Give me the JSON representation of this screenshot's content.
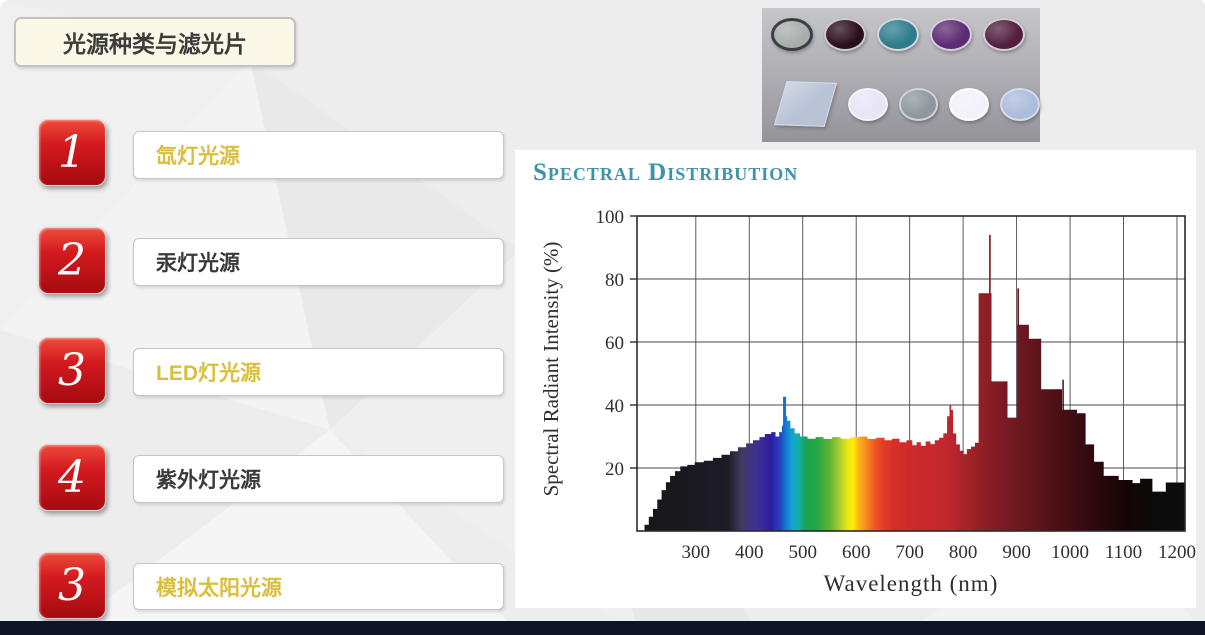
{
  "theme": {
    "accent_red": "#c8121a",
    "gold": "#d9bf3c",
    "dark_text": "#3a3a3a",
    "teal": "#3d93a8",
    "navy": "#0e1526",
    "cream": "#fcf8e7"
  },
  "slide": {
    "title": "光源种类与滤光片"
  },
  "list": {
    "items": [
      {
        "number": "1",
        "label": "氙灯光源",
        "color": "gold"
      },
      {
        "number": "2",
        "label": "汞灯光源",
        "color": "dark"
      },
      {
        "number": "3",
        "label": "LED灯光源",
        "color": "gold"
      },
      {
        "number": "4",
        "label": "紫外灯光源",
        "color": "dark"
      },
      {
        "number": "3",
        "label": "模拟太阳光源",
        "color": "gold"
      }
    ]
  },
  "filters": {
    "rows": [
      [
        {
          "shape": "ellipse",
          "fill": "#a8aeac",
          "ring": "#3c4043",
          "rw": 3,
          "name": "gray-nd-filter"
        },
        {
          "shape": "ellipse",
          "fill": "#2a0d1d",
          "ring": "#cfc8d4",
          "name": "dark-maroon-filter"
        },
        {
          "shape": "ellipse",
          "fill": "#2e7b8d",
          "ring": "#d3d9dd",
          "name": "teal-filter"
        },
        {
          "shape": "ellipse",
          "fill": "#5c2a73",
          "ring": "#d6cfdc",
          "name": "purple-filter"
        },
        {
          "shape": "ellipse",
          "fill": "#521e3e",
          "ring": "#d6ccd4",
          "name": "plum-filter"
        }
      ],
      [
        {
          "shape": "square",
          "fill": "#b9c3d6",
          "ring": "#d8dee8",
          "name": "square-glass-filter"
        },
        {
          "shape": "ellipse",
          "fill": "#e7e5f6",
          "ring": "#f4f2fc",
          "name": "lavender-filter"
        },
        {
          "shape": "ellipse",
          "fill": "#8d979d",
          "ring": "#ced4d8",
          "name": "gray-filter"
        },
        {
          "shape": "ellipse",
          "fill": "#f3f1fa",
          "ring": "#ffffff",
          "name": "white-filter"
        },
        {
          "shape": "ellipse",
          "fill": "#adbcdc",
          "ring": "#d4dcec",
          "name": "light-blue-filter"
        }
      ]
    ]
  },
  "chart_data": {
    "type": "area",
    "title": "Spectral Distribution",
    "xlabel": "Wavelength (nm)",
    "ylabel": "Spectral Radiant Intensity (%)",
    "x_range": [
      190,
      1215
    ],
    "y_range": [
      0,
      100
    ],
    "x_ticks": [
      300,
      400,
      500,
      600,
      700,
      800,
      900,
      1000,
      1100,
      1200
    ],
    "y_ticks": [
      20,
      40,
      60,
      80,
      100
    ],
    "grid": true,
    "legend": "none",
    "steps": [
      [
        190,
        0
      ],
      [
        204,
        2
      ],
      [
        212,
        4.5
      ],
      [
        220,
        7
      ],
      [
        228,
        10
      ],
      [
        236,
        13
      ],
      [
        244,
        15.5
      ],
      [
        252,
        17.5
      ],
      [
        261,
        19
      ],
      [
        271,
        20.5
      ],
      [
        284,
        21
      ],
      [
        298,
        21.8
      ],
      [
        315,
        22.3
      ],
      [
        332,
        23.2
      ],
      [
        348,
        24.2
      ],
      [
        364,
        25.3
      ],
      [
        379,
        26.6
      ],
      [
        394,
        27.8
      ],
      [
        407,
        28.8
      ],
      [
        419,
        29.8
      ],
      [
        429,
        30.8
      ],
      [
        441,
        31.4
      ],
      [
        449,
        30
      ],
      [
        456,
        31.4
      ],
      [
        461,
        33.4
      ],
      [
        465,
        36.4
      ],
      [
        471,
        35
      ],
      [
        477,
        32.6
      ],
      [
        485,
        31
      ],
      [
        495,
        30
      ],
      [
        509,
        29.3
      ],
      [
        524,
        29.8
      ],
      [
        539,
        29.2
      ],
      [
        555,
        29.8
      ],
      [
        571,
        29.3
      ],
      [
        589,
        29.8
      ],
      [
        606,
        30
      ],
      [
        621,
        29.2
      ],
      [
        637,
        29.6
      ],
      [
        653,
        28.8
      ],
      [
        667,
        29.3
      ],
      [
        681,
        28.2
      ],
      [
        694,
        28.8
      ],
      [
        705,
        27.2
      ],
      [
        713,
        28.2
      ],
      [
        721,
        27
      ],
      [
        730,
        28.4
      ],
      [
        739,
        27.6
      ],
      [
        747,
        28.8
      ],
      [
        755,
        29.6
      ],
      [
        763,
        31
      ],
      [
        770,
        36.4
      ],
      [
        776,
        38.4
      ],
      [
        781,
        31
      ],
      [
        787,
        27.5
      ],
      [
        794,
        25.5
      ],
      [
        801,
        24.4
      ],
      [
        807,
        26
      ],
      [
        815,
        26.8
      ],
      [
        822,
        28
      ],
      [
        829,
        75.5
      ],
      [
        853,
        47.5
      ],
      [
        883,
        36
      ],
      [
        901,
        65.5
      ],
      [
        923,
        61
      ],
      [
        946,
        45
      ],
      [
        985,
        38.5
      ],
      [
        1013,
        37.4
      ],
      [
        1029,
        27.5
      ],
      [
        1045,
        22
      ],
      [
        1063,
        17.5
      ],
      [
        1091,
        16.2
      ],
      [
        1117,
        15.2
      ],
      [
        1131,
        16.6
      ],
      [
        1154,
        12.5
      ],
      [
        1179,
        15.4
      ],
      [
        1215,
        15.8
      ]
    ],
    "spikes": [
      [
        466,
        42.6,
        3
      ],
      [
        776,
        40,
        1.6
      ],
      [
        850,
        94,
        1.7
      ],
      [
        903,
        77,
        1.7
      ],
      [
        987,
        48,
        1.5
      ]
    ],
    "gradient_stops": [
      [
        190,
        "#161616"
      ],
      [
        360,
        "#1d1b26"
      ],
      [
        385,
        "#413a5e"
      ],
      [
        415,
        "#3c3196"
      ],
      [
        440,
        "#2d1d9c"
      ],
      [
        458,
        "#2643c2"
      ],
      [
        468,
        "#1479d2"
      ],
      [
        480,
        "#14a4d6"
      ],
      [
        494,
        "#13b0a0"
      ],
      [
        505,
        "#1aa351"
      ],
      [
        525,
        "#23a644"
      ],
      [
        548,
        "#57b137"
      ],
      [
        566,
        "#9cc832"
      ],
      [
        582,
        "#e6e414"
      ],
      [
        594,
        "#ffef00"
      ],
      [
        604,
        "#fbb615"
      ],
      [
        618,
        "#f78d1e"
      ],
      [
        634,
        "#ef5a24"
      ],
      [
        652,
        "#e23a28"
      ],
      [
        672,
        "#d62e29"
      ],
      [
        700,
        "#cd2a2b"
      ],
      [
        770,
        "#c1272d"
      ],
      [
        820,
        "#9c2128"
      ],
      [
        860,
        "#821c24"
      ],
      [
        905,
        "#6d1820"
      ],
      [
        950,
        "#58131a"
      ],
      [
        1000,
        "#400d13"
      ],
      [
        1055,
        "#2a080c"
      ],
      [
        1110,
        "#120406"
      ],
      [
        1160,
        "#0b0b0b"
      ],
      [
        1215,
        "#0d0d0d"
      ]
    ]
  }
}
